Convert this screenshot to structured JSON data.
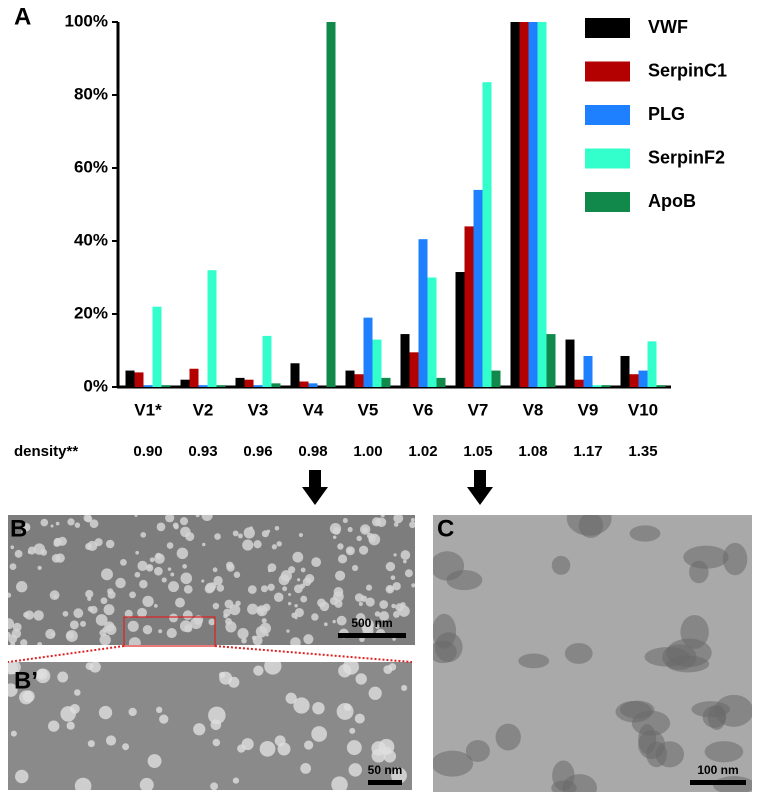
{
  "chart_data": {
    "type": "bar",
    "panel_label": "A",
    "categories": [
      "V1*",
      "V2",
      "V3",
      "V4",
      "V5",
      "V6",
      "V7",
      "V8",
      "V9",
      "V10"
    ],
    "series": [
      {
        "name": "VWF",
        "color": "#000000",
        "values": [
          4.5,
          2,
          2.5,
          6.5,
          4.5,
          14.5,
          31.5,
          100,
          13,
          8.5
        ]
      },
      {
        "name": "SerpinC1",
        "color": "#b30000",
        "values": [
          4,
          5,
          2,
          1.5,
          3.5,
          9.5,
          44,
          100,
          2,
          3.5
        ]
      },
      {
        "name": "PLG",
        "color": "#1e80ff",
        "values": [
          0.5,
          0.5,
          0.5,
          1,
          19,
          40.5,
          54,
          100,
          8.5,
          4.5
        ]
      },
      {
        "name": "SerpinF2",
        "color": "#33ffcc",
        "values": [
          22,
          32,
          14,
          0,
          13,
          30,
          83.5,
          100,
          0.5,
          12.5
        ]
      },
      {
        "name": "ApoB",
        "color": "#11894a",
        "values": [
          0.5,
          0.5,
          1,
          100,
          2.5,
          2.5,
          4.5,
          14.5,
          0.5,
          0.5
        ]
      }
    ],
    "ylim": [
      0,
      100
    ],
    "yticks": [
      {
        "value": 0,
        "label": "0%"
      },
      {
        "value": 20,
        "label": "20%"
      },
      {
        "value": 40,
        "label": "40%"
      },
      {
        "value": 60,
        "label": "60%"
      },
      {
        "value": 80,
        "label": "80%"
      },
      {
        "value": 100,
        "label": "100%"
      }
    ],
    "density_label": "density**",
    "density_values": [
      "0.90",
      "0.93",
      "0.96",
      "0.98",
      "1.00",
      "1.02",
      "1.05",
      "1.08",
      "1.17",
      "1.35"
    ]
  },
  "panels": {
    "B": {
      "label": "B",
      "scale_bar": "500 nm"
    },
    "B_prime": {
      "label": "B’",
      "scale_bar": "50 nm"
    },
    "C": {
      "label": "C",
      "scale_bar": "100 nm"
    }
  }
}
